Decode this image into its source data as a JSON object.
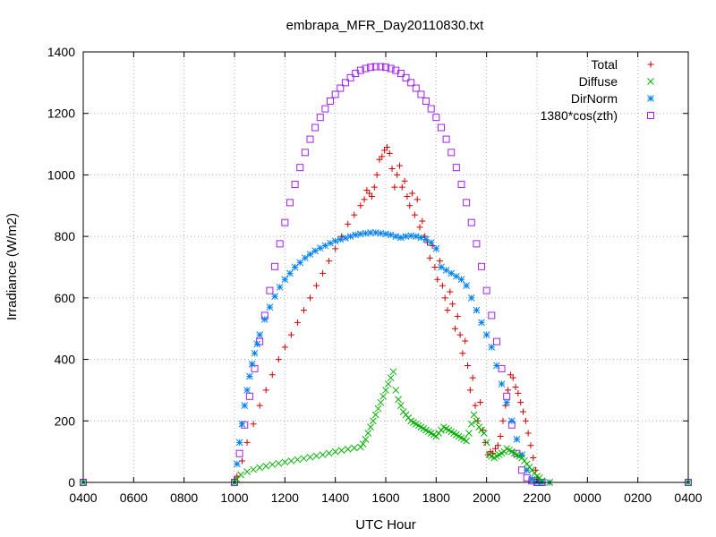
{
  "chart_data": {
    "type": "scatter",
    "title": "embrapa_MFR_Day20110830.txt",
    "xlabel": "UTC Hour",
    "ylabel": "Irradiance (W/m2)",
    "xlim": [
      4,
      28
    ],
    "ylim": [
      0,
      1400
    ],
    "grid": true,
    "legend_position": "top-right",
    "x_ticks": [
      {
        "value": 4,
        "label": "0400"
      },
      {
        "value": 6,
        "label": "0600"
      },
      {
        "value": 8,
        "label": "0800"
      },
      {
        "value": 10,
        "label": "1000"
      },
      {
        "value": 12,
        "label": "1200"
      },
      {
        "value": 14,
        "label": "1400"
      },
      {
        "value": 16,
        "label": "1600"
      },
      {
        "value": 18,
        "label": "1800"
      },
      {
        "value": 20,
        "label": "2000"
      },
      {
        "value": 22,
        "label": "2200"
      },
      {
        "value": 24,
        "label": "0000"
      },
      {
        "value": 26,
        "label": "0200"
      },
      {
        "value": 28,
        "label": "0400"
      }
    ],
    "y_ticks": [
      0,
      200,
      400,
      600,
      800,
      1000,
      1200,
      1400
    ],
    "series": [
      {
        "name": "Total",
        "marker": "plus",
        "color": "#d00000",
        "x": [
          4,
          10,
          10.1,
          10.3,
          10.5,
          10.75,
          11,
          11.25,
          11.5,
          11.75,
          12,
          12.25,
          12.5,
          12.75,
          13,
          13.25,
          13.5,
          13.75,
          14,
          14.25,
          14.5,
          14.75,
          15,
          15.15,
          15.25,
          15.35,
          15.45,
          15.55,
          15.65,
          15.75,
          15.85,
          15.95,
          16.05,
          16.15,
          16.25,
          16.35,
          16.45,
          16.55,
          16.65,
          16.75,
          16.85,
          16.95,
          17.05,
          17.15,
          17.25,
          17.35,
          17.45,
          17.55,
          17.65,
          17.75,
          17.85,
          17.95,
          18.05,
          18.15,
          18.25,
          18.35,
          18.45,
          18.55,
          18.65,
          18.75,
          18.85,
          18.95,
          19.05,
          19.15,
          19.25,
          19.35,
          19.45,
          19.55,
          19.65,
          19.75,
          19.85,
          19.95,
          20.05,
          20.15,
          20.25,
          20.35,
          20.45,
          20.55,
          20.65,
          20.75,
          20.85,
          20.95,
          21.05,
          21.15,
          21.25,
          21.35,
          21.45,
          21.55,
          21.65,
          21.75,
          21.85,
          21.95,
          22.05,
          22.2,
          22.5,
          28
        ],
        "y": [
          0,
          0,
          20,
          70,
          130,
          190,
          250,
          300,
          350,
          400,
          440,
          480,
          520,
          560,
          600,
          640,
          680,
          720,
          760,
          800,
          840,
          870,
          900,
          920,
          950,
          940,
          930,
          960,
          1000,
          1050,
          1060,
          1080,
          1090,
          1070,
          1020,
          960,
          1000,
          1030,
          960,
          980,
          930,
          900,
          940,
          870,
          920,
          830,
          850,
          800,
          780,
          730,
          770,
          700,
          660,
          720,
          640,
          600,
          560,
          620,
          580,
          500,
          540,
          480,
          420,
          460,
          380,
          300,
          340,
          250,
          200,
          260,
          170,
          130,
          90,
          100,
          95,
          110,
          120,
          150,
          200,
          250,
          300,
          350,
          340,
          310,
          290,
          260,
          230,
          200,
          160,
          120,
          80,
          40,
          10,
          0,
          0,
          0
        ]
      },
      {
        "name": "Diffuse",
        "marker": "cross",
        "color": "#00b000",
        "x": [
          4,
          10,
          10.1,
          10.25,
          10.5,
          10.75,
          11,
          11.25,
          11.5,
          11.75,
          12,
          12.25,
          12.5,
          12.75,
          13,
          13.25,
          13.5,
          13.75,
          14,
          14.25,
          14.5,
          14.75,
          15,
          15.1,
          15.2,
          15.3,
          15.4,
          15.5,
          15.6,
          15.7,
          15.8,
          15.9,
          16,
          16.1,
          16.2,
          16.3,
          16.4,
          16.5,
          16.6,
          16.7,
          16.8,
          16.9,
          17,
          17.1,
          17.2,
          17.3,
          17.4,
          17.5,
          17.6,
          17.7,
          17.8,
          17.9,
          18,
          18.1,
          18.2,
          18.3,
          18.4,
          18.5,
          18.6,
          18.7,
          18.8,
          18.9,
          19,
          19.1,
          19.2,
          19.3,
          19.4,
          19.5,
          19.6,
          19.7,
          19.8,
          19.9,
          20,
          20.1,
          20.2,
          20.3,
          20.4,
          20.5,
          20.6,
          20.7,
          20.8,
          20.9,
          21,
          21.1,
          21.2,
          21.3,
          21.4,
          21.5,
          21.6,
          21.7,
          21.8,
          21.9,
          22,
          22.1,
          22.2,
          22.5,
          28
        ],
        "y": [
          0,
          0,
          10,
          25,
          35,
          42,
          48,
          53,
          58,
          62,
          66,
          70,
          74,
          78,
          82,
          86,
          90,
          95,
          100,
          104,
          108,
          112,
          115,
          125,
          140,
          160,
          180,
          200,
          220,
          240,
          260,
          280,
          300,
          320,
          340,
          360,
          300,
          270,
          250,
          230,
          220,
          210,
          200,
          195,
          190,
          185,
          180,
          175,
          170,
          165,
          160,
          155,
          150,
          160,
          170,
          180,
          175,
          170,
          165,
          160,
          155,
          150,
          145,
          140,
          135,
          160,
          190,
          220,
          200,
          180,
          170,
          160,
          130,
          90,
          85,
          80,
          85,
          90,
          95,
          100,
          110,
          105,
          100,
          95,
          90,
          85,
          80,
          70,
          60,
          50,
          40,
          30,
          20,
          15,
          5,
          0,
          0
        ]
      },
      {
        "name": "DirNorm",
        "marker": "star",
        "color": "#0080f0",
        "x": [
          4,
          10,
          10.1,
          10.2,
          10.3,
          10.4,
          10.5,
          10.6,
          10.7,
          10.8,
          10.9,
          11,
          11.2,
          11.4,
          11.6,
          11.8,
          12,
          12.2,
          12.4,
          12.6,
          12.8,
          13,
          13.2,
          13.4,
          13.6,
          13.8,
          14,
          14.2,
          14.4,
          14.6,
          14.8,
          15,
          15.2,
          15.4,
          15.6,
          15.8,
          16,
          16.2,
          16.4,
          16.6,
          16.8,
          17,
          17.2,
          17.4,
          17.6,
          17.8,
          18,
          18.2,
          18.4,
          18.6,
          18.8,
          19,
          19.2,
          19.4,
          19.6,
          19.8,
          20,
          20.2,
          20.4,
          20.6,
          20.8,
          21,
          21.2,
          21.4,
          21.6,
          21.8,
          22,
          22.2,
          22.5,
          28
        ],
        "y": [
          0,
          0,
          60,
          130,
          190,
          250,
          300,
          345,
          385,
          420,
          450,
          480,
          530,
          570,
          605,
          635,
          660,
          680,
          700,
          715,
          730,
          742,
          753,
          762,
          770,
          778,
          785,
          790,
          795,
          800,
          805,
          808,
          810,
          812,
          812,
          810,
          808,
          805,
          800,
          796,
          800,
          802,
          800,
          796,
          790,
          780,
          760,
          700,
          690,
          680,
          670,
          660,
          640,
          600,
          560,
          520,
          480,
          440,
          380,
          320,
          260,
          200,
          140,
          90,
          40,
          10,
          0,
          0,
          0,
          0
        ]
      },
      {
        "name": "1380*cos(zth)",
        "marker": "square",
        "color": "#a020f0",
        "x": [
          4,
          10,
          10.2,
          10.4,
          10.6,
          10.8,
          11,
          11.2,
          11.4,
          11.6,
          11.8,
          12,
          12.2,
          12.4,
          12.6,
          12.8,
          13,
          13.2,
          13.4,
          13.6,
          13.8,
          14,
          14.2,
          14.4,
          14.6,
          14.8,
          15,
          15.2,
          15.4,
          15.6,
          15.8,
          16,
          16.2,
          16.4,
          16.6,
          16.8,
          17,
          17.2,
          17.4,
          17.6,
          17.8,
          18,
          18.2,
          18.4,
          18.6,
          18.8,
          19,
          19.2,
          19.4,
          19.6,
          19.8,
          20,
          20.2,
          20.4,
          20.6,
          20.8,
          21,
          21.2,
          21.4,
          21.6,
          21.8,
          22,
          22.2,
          28
        ],
        "y": [
          0,
          0,
          94,
          187,
          280,
          370,
          458,
          543,
          624,
          702,
          776,
          845,
          910,
          969,
          1024,
          1073,
          1116,
          1154,
          1187,
          1215,
          1240,
          1262,
          1282,
          1300,
          1316,
          1330,
          1340,
          1346,
          1350,
          1352,
          1352,
          1350,
          1346,
          1340,
          1330,
          1316,
          1300,
          1282,
          1262,
          1240,
          1215,
          1187,
          1154,
          1116,
          1073,
          1024,
          969,
          910,
          845,
          776,
          702,
          624,
          543,
          458,
          370,
          280,
          187,
          94,
          40,
          15,
          5,
          0,
          0,
          0
        ]
      }
    ]
  }
}
